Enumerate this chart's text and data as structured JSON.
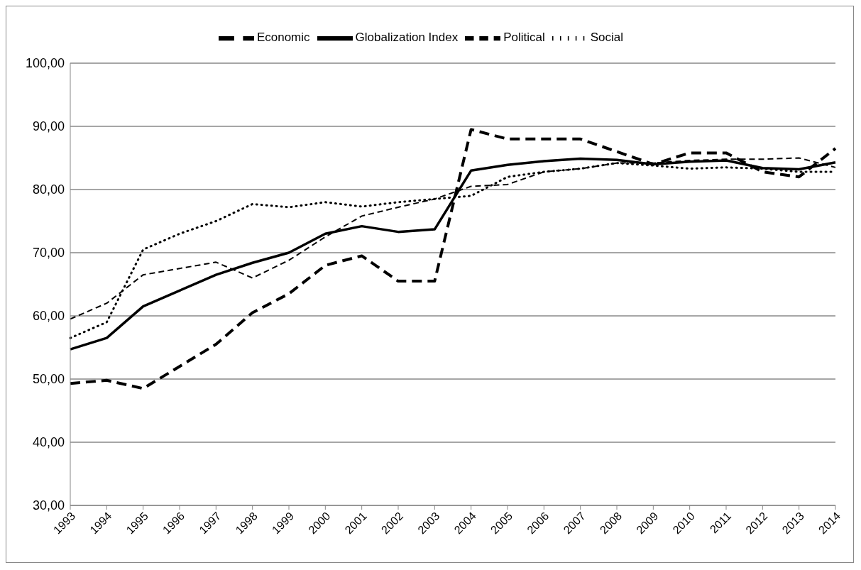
{
  "chart_data": {
    "type": "line",
    "categories": [
      "1993",
      "1994",
      "1995",
      "1996",
      "1997",
      "1998",
      "1999",
      "2000",
      "2001",
      "2002",
      "2003",
      "2004",
      "2005",
      "2006",
      "2007",
      "2008",
      "2009",
      "2010",
      "2011",
      "2012",
      "2013",
      "2014"
    ],
    "series": [
      {
        "name": "Economic",
        "color": "#000000",
        "line_style": "dashed",
        "values": [
          49.3,
          49.8,
          48.5,
          52,
          55.5,
          60.5,
          63.5,
          68,
          69.5,
          65.5,
          65.5,
          89.5,
          88,
          88,
          88,
          86,
          84,
          85.8,
          85.8,
          82.8,
          82,
          86.5
        ]
      },
      {
        "name": "Social",
        "color": "#000000",
        "line_style": "dotted",
        "values": [
          56.5,
          59,
          70.5,
          73,
          75,
          77.7,
          77.2,
          78,
          77.3,
          78,
          78.5,
          79,
          82,
          82.8,
          83.3,
          84.2,
          83.8,
          83.3,
          83.5,
          83.3,
          82.8,
          82.8
        ]
      },
      {
        "name": "Political",
        "color": "#000000",
        "line_style": "dashed",
        "values": [
          59.5,
          62,
          66.5,
          67.5,
          68.5,
          66,
          68.8,
          72.5,
          75.8,
          77.2,
          78.5,
          80.5,
          80.8,
          82.8,
          83.3,
          84.2,
          84.2,
          84.6,
          84.8,
          84.8,
          85,
          83.5
        ]
      },
      {
        "name": "Globalization Index",
        "color": "#000000",
        "line_style": "solid",
        "values": [
          54.7,
          56.5,
          61.5,
          64,
          66.5,
          68.4,
          70,
          73,
          74.2,
          73.3,
          73.7,
          83,
          83.9,
          84.5,
          84.9,
          84.7,
          84,
          84.4,
          84.6,
          83.4,
          83.2,
          84.3
        ]
      }
    ],
    "ylim": [
      30,
      100
    ],
    "yticks": [
      {
        "value": 30,
        "label": "30,00"
      },
      {
        "value": 40,
        "label": "40,00"
      },
      {
        "value": 50,
        "label": "50,00"
      },
      {
        "value": 60,
        "label": "60,00"
      },
      {
        "value": 70,
        "label": "70,00"
      },
      {
        "value": 80,
        "label": "80,00"
      },
      {
        "value": 90,
        "label": "90,00"
      },
      {
        "value": 100,
        "label": "100,00"
      }
    ],
    "grid": "y",
    "legend": "top",
    "marker": "none"
  }
}
